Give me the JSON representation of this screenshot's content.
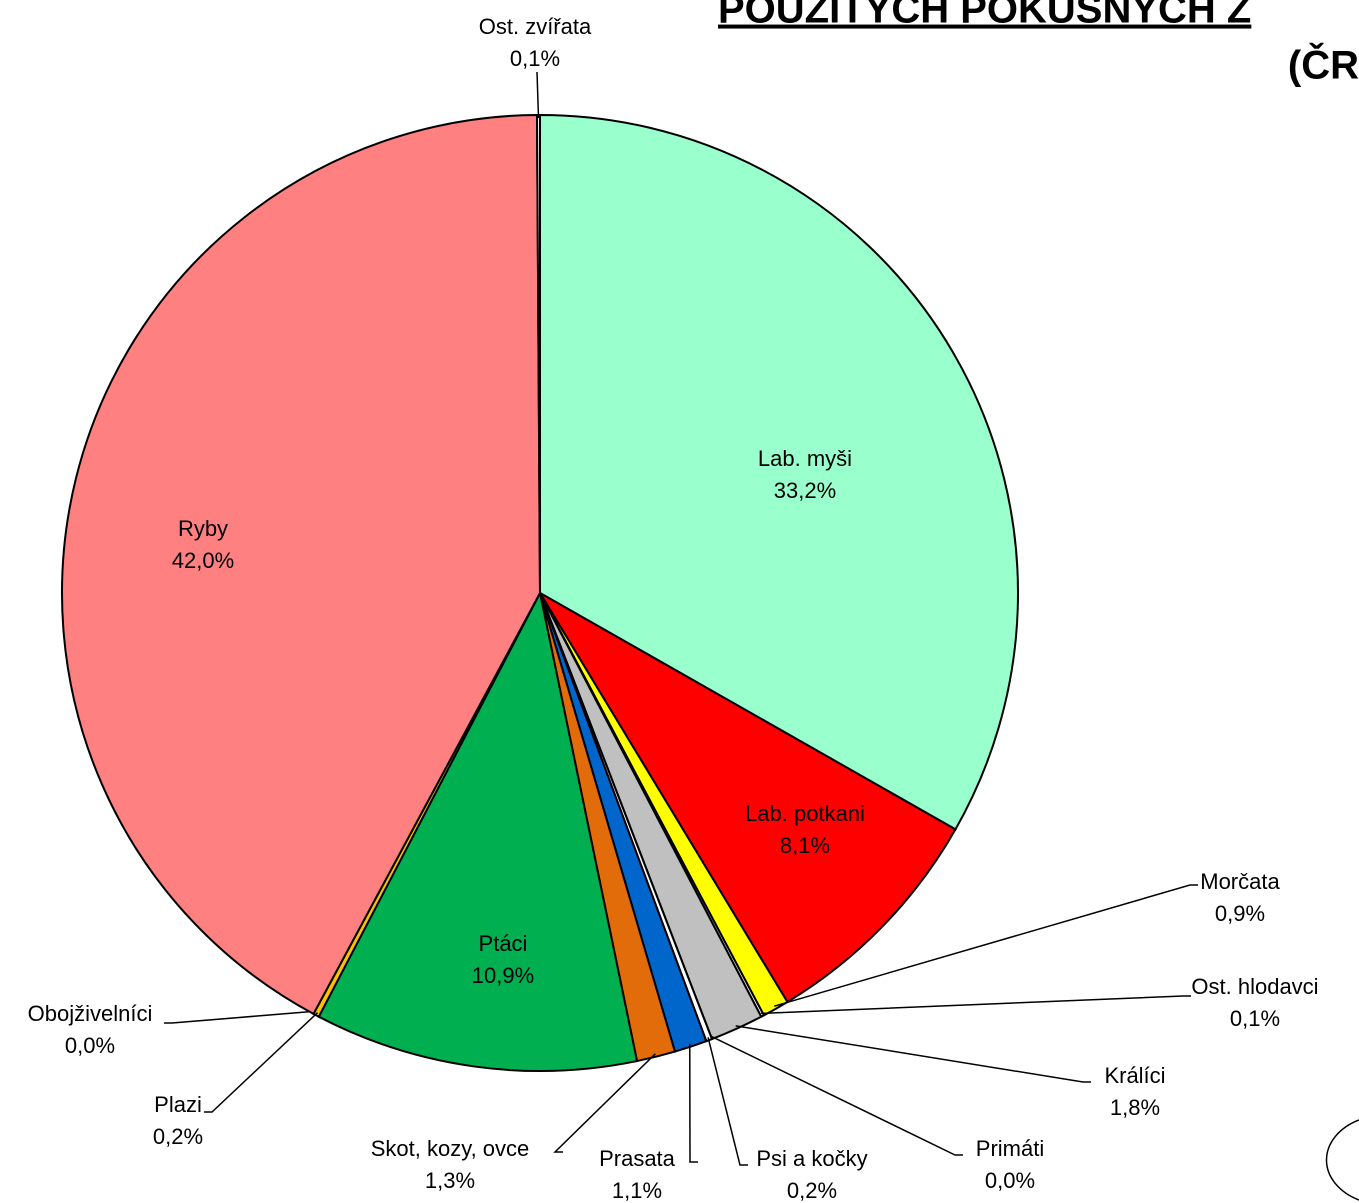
{
  "chart_data": {
    "type": "pie",
    "title": "POUŽITÝCH POKUSNÝCH Z",
    "subtitle": "(ČR",
    "categories": [
      "Lab. myši",
      "Lab. potkani",
      "Morčata",
      "Ost. hlodavci",
      "Králíci",
      "Primáti",
      "Psi a kočky",
      "Prasata",
      "Skot, kozy, ovce",
      "Ptáci",
      "Plazi",
      "Obojživelníci",
      "Ryby",
      "Ost. zvířata"
    ],
    "values": [
      33.2,
      8.1,
      0.9,
      0.1,
      1.8,
      0.0,
      0.2,
      1.1,
      1.3,
      10.9,
      0.2,
      0.0,
      42.0,
      0.1
    ],
    "value_labels": [
      "33,2%",
      "8,1%",
      "0,9%",
      "0,1%",
      "1,8%",
      "0,0%",
      "0,2%",
      "1,1%",
      "1,3%",
      "10,9%",
      "0,2%",
      "0,0%",
      "42,0%",
      "0,1%"
    ],
    "colors": [
      "#99ffcc",
      "#ff0000",
      "#ffff00",
      "#ffffff",
      "#c0c0c0",
      "#ffffff",
      "#ffffff",
      "#0066cc",
      "#e36c0a",
      "#00b050",
      "#ffc000",
      "#ffffff",
      "#ff8080",
      "#ffffff"
    ]
  }
}
